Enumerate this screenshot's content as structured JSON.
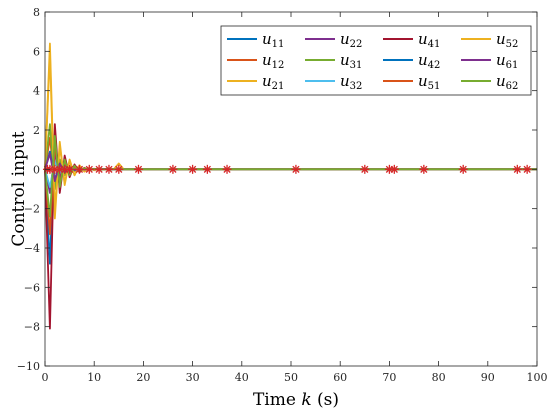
{
  "chart_data": {
    "type": "line",
    "xlabel": "Time k (s)",
    "xlabel_parts": {
      "prefix": "Time ",
      "var": "k",
      "suffix": " (s)"
    },
    "ylabel": "Control input",
    "xlim": [
      0,
      100
    ],
    "ylim": [
      -10,
      8
    ],
    "xticks": [
      0,
      10,
      20,
      30,
      40,
      50,
      60,
      70,
      80,
      90,
      100
    ],
    "yticks": [
      -10,
      -8,
      -6,
      -4,
      -2,
      0,
      2,
      4,
      6,
      8
    ],
    "grid": false,
    "legend_position": "top-right",
    "legend_columns": 4,
    "x": [
      0,
      1,
      2,
      3,
      4,
      5,
      6,
      7,
      8,
      9,
      10,
      11,
      12,
      13,
      14,
      15,
      16,
      17,
      18,
      19,
      20,
      100
    ],
    "series": [
      {
        "name": "u11",
        "label_base": "u",
        "label_sub": "11",
        "color": "#0072BD",
        "values": [
          0,
          -4.8,
          1.8,
          -0.9,
          0.5,
          -0.3,
          0.2,
          -0.1,
          0.06,
          -0.04,
          0.02,
          -0.01,
          0.01,
          0,
          0,
          0,
          0,
          0,
          0,
          0,
          0,
          0
        ]
      },
      {
        "name": "u12",
        "label_base": "u",
        "label_sub": "12",
        "color": "#D95319",
        "values": [
          0,
          1.6,
          -0.7,
          0.4,
          -0.2,
          0.1,
          -0.06,
          0.03,
          -0.02,
          0.01,
          0,
          0,
          0,
          0,
          0,
          0,
          0,
          0,
          0,
          0,
          0,
          0
        ]
      },
      {
        "name": "u21",
        "label_base": "u",
        "label_sub": "21",
        "color": "#EDB120",
        "values": [
          0,
          5.9,
          -2.5,
          1.4,
          -0.8,
          0.5,
          -0.3,
          0.2,
          -0.1,
          0.06,
          -0.04,
          0.02,
          -0.01,
          0,
          0,
          0,
          0,
          0,
          0,
          0,
          0,
          0
        ]
      },
      {
        "name": "u22",
        "label_base": "u",
        "label_sub": "22",
        "color": "#7E2F8E",
        "values": [
          0,
          -1.2,
          0.8,
          -0.4,
          0.2,
          -0.1,
          0.05,
          -0.03,
          0.01,
          0,
          0,
          0,
          0,
          0,
          0,
          0,
          0,
          0,
          0,
          0,
          0,
          0
        ]
      },
      {
        "name": "u31",
        "label_base": "u",
        "label_sub": "31",
        "color": "#77AC30",
        "values": [
          0,
          2.3,
          -1.0,
          0.5,
          -0.3,
          0.15,
          -0.08,
          0.04,
          -0.02,
          0.01,
          0,
          0,
          0,
          0,
          0,
          0,
          0,
          0,
          0,
          0,
          0,
          0
        ]
      },
      {
        "name": "u32",
        "label_base": "u",
        "label_sub": "32",
        "color": "#4DBEEE",
        "values": [
          0,
          -0.9,
          0.4,
          -0.2,
          0.1,
          -0.05,
          0.02,
          -0.01,
          0,
          0,
          0,
          0,
          0,
          0,
          0,
          0,
          0,
          0,
          0,
          0,
          0,
          0
        ]
      },
      {
        "name": "u41",
        "label_base": "u",
        "label_sub": "41",
        "color": "#A2142F",
        "values": [
          0,
          -8.1,
          2.3,
          -1.2,
          0.7,
          -0.4,
          0.25,
          -0.15,
          0.08,
          -0.05,
          0.03,
          -0.02,
          0.01,
          0,
          0,
          0,
          0,
          0,
          0,
          0,
          0,
          0
        ]
      },
      {
        "name": "u42",
        "label_base": "u",
        "label_sub": "42",
        "color": "#0072BD",
        "values": [
          0,
          0.9,
          -0.5,
          0.25,
          -0.12,
          0.06,
          -0.03,
          0.01,
          0,
          0,
          0,
          0,
          0,
          0,
          0,
          0,
          0,
          0,
          0,
          0,
          0,
          0
        ]
      },
      {
        "name": "u51",
        "label_base": "u",
        "label_sub": "51",
        "color": "#D95319",
        "values": [
          0,
          -3.3,
          1.3,
          -0.7,
          0.4,
          -0.2,
          0.1,
          -0.05,
          0.02,
          -0.01,
          0,
          0,
          0,
          0,
          0,
          0,
          0,
          0,
          0,
          0,
          0,
          0
        ]
      },
      {
        "name": "u52",
        "label_base": "u",
        "label_sub": "52",
        "color": "#EDB120",
        "values": [
          0,
          6.4,
          -2.1,
          1.2,
          -0.7,
          0.45,
          -0.3,
          0.2,
          -0.12,
          0.08,
          -0.05,
          0.03,
          -0.02,
          0.01,
          0.01,
          0.3,
          0,
          0,
          0,
          0,
          0,
          0
        ]
      },
      {
        "name": "u61",
        "label_base": "u",
        "label_sub": "61",
        "color": "#7E2F8E",
        "values": [
          0,
          0.8,
          -0.6,
          0.3,
          -0.15,
          0.08,
          -0.04,
          0.02,
          -0.01,
          0,
          0,
          0,
          0,
          0,
          0,
          0,
          0,
          0,
          0,
          0,
          0,
          0
        ]
      },
      {
        "name": "u62",
        "label_base": "u",
        "label_sub": "62",
        "color": "#77AC30",
        "values": [
          0,
          -2.4,
          1.7,
          -0.9,
          0.5,
          -0.3,
          0.18,
          -0.1,
          0.06,
          -0.03,
          0.02,
          -0.01,
          0,
          0,
          0,
          0,
          0,
          0,
          0,
          0,
          0,
          0
        ]
      }
    ],
    "event_markers": {
      "symbol": "asterisk",
      "color": "#D62728",
      "y": 0,
      "x": [
        0.5,
        1,
        2,
        3,
        4,
        5,
        7,
        9,
        11,
        13,
        15,
        19,
        26,
        30,
        33,
        37,
        51,
        65,
        70,
        71,
        77,
        85,
        96,
        98
      ]
    }
  }
}
